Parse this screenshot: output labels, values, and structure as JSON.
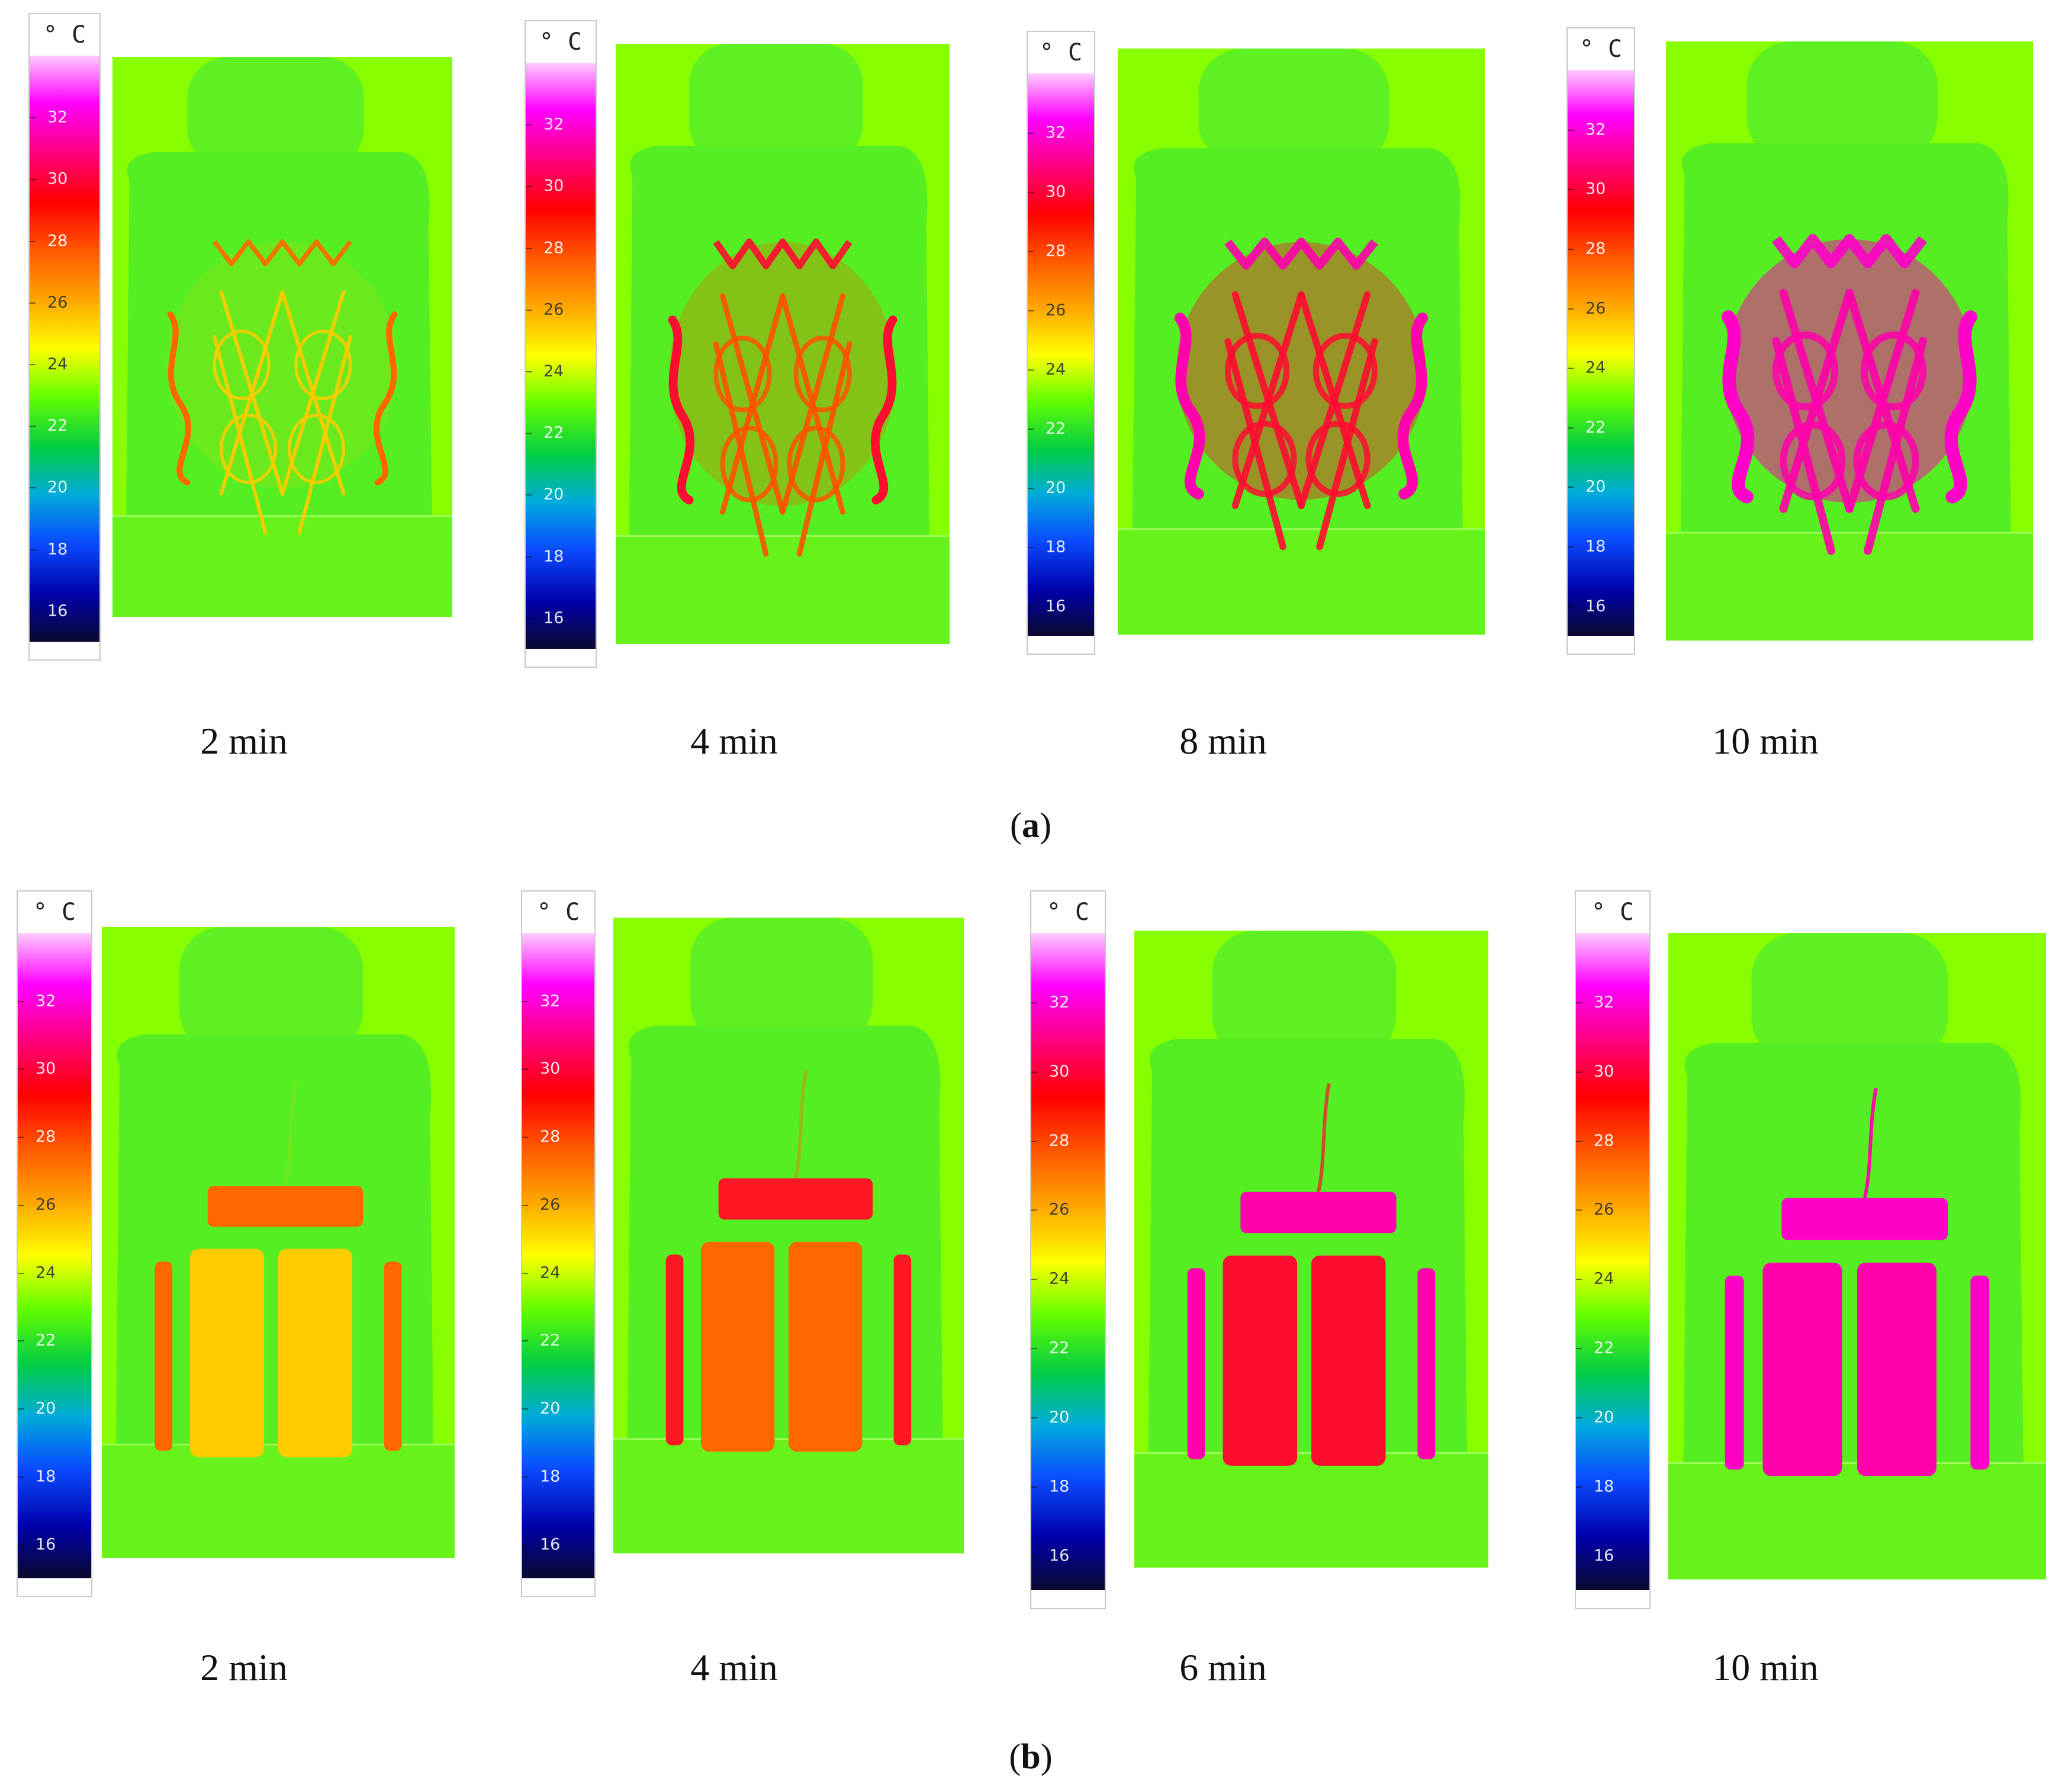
{
  "colorbar": {
    "unit": "° C",
    "ticks": [
      "32",
      "30",
      "28",
      "26",
      "24",
      "22",
      "20",
      "18",
      "16"
    ],
    "range": [
      15,
      34
    ],
    "colors": [
      "#0a0a30",
      "#0000aa",
      "#0a4cff",
      "#00aadd",
      "#00cc44",
      "#66ff00",
      "#ffff00",
      "#ffaa00",
      "#ff5500",
      "#ff0000",
      "#ff0077",
      "#ff00ff",
      "#ffccff"
    ]
  },
  "figure_a": {
    "label_open": "(",
    "label_letter": "a",
    "label_close": ")",
    "panels": [
      {
        "time": "2 min",
        "heating_level": 0.15,
        "pattern": "wire"
      },
      {
        "time": "4 min",
        "heating_level": 0.45,
        "pattern": "wire"
      },
      {
        "time": "8 min",
        "heating_level": 0.7,
        "pattern": "wire"
      },
      {
        "time": "10 min",
        "heating_level": 0.95,
        "pattern": "wire"
      }
    ]
  },
  "figure_b": {
    "label_open": "(",
    "label_letter": "b",
    "label_close": ")",
    "panels": [
      {
        "time": "2 min",
        "heating_level": 0.15,
        "pattern": "pads"
      },
      {
        "time": "4 min",
        "heating_level": 0.4,
        "pattern": "pads"
      },
      {
        "time": "6 min",
        "heating_level": 0.7,
        "pattern": "pads"
      },
      {
        "time": "10 min",
        "heating_level": 0.95,
        "pattern": "pads"
      }
    ]
  }
}
